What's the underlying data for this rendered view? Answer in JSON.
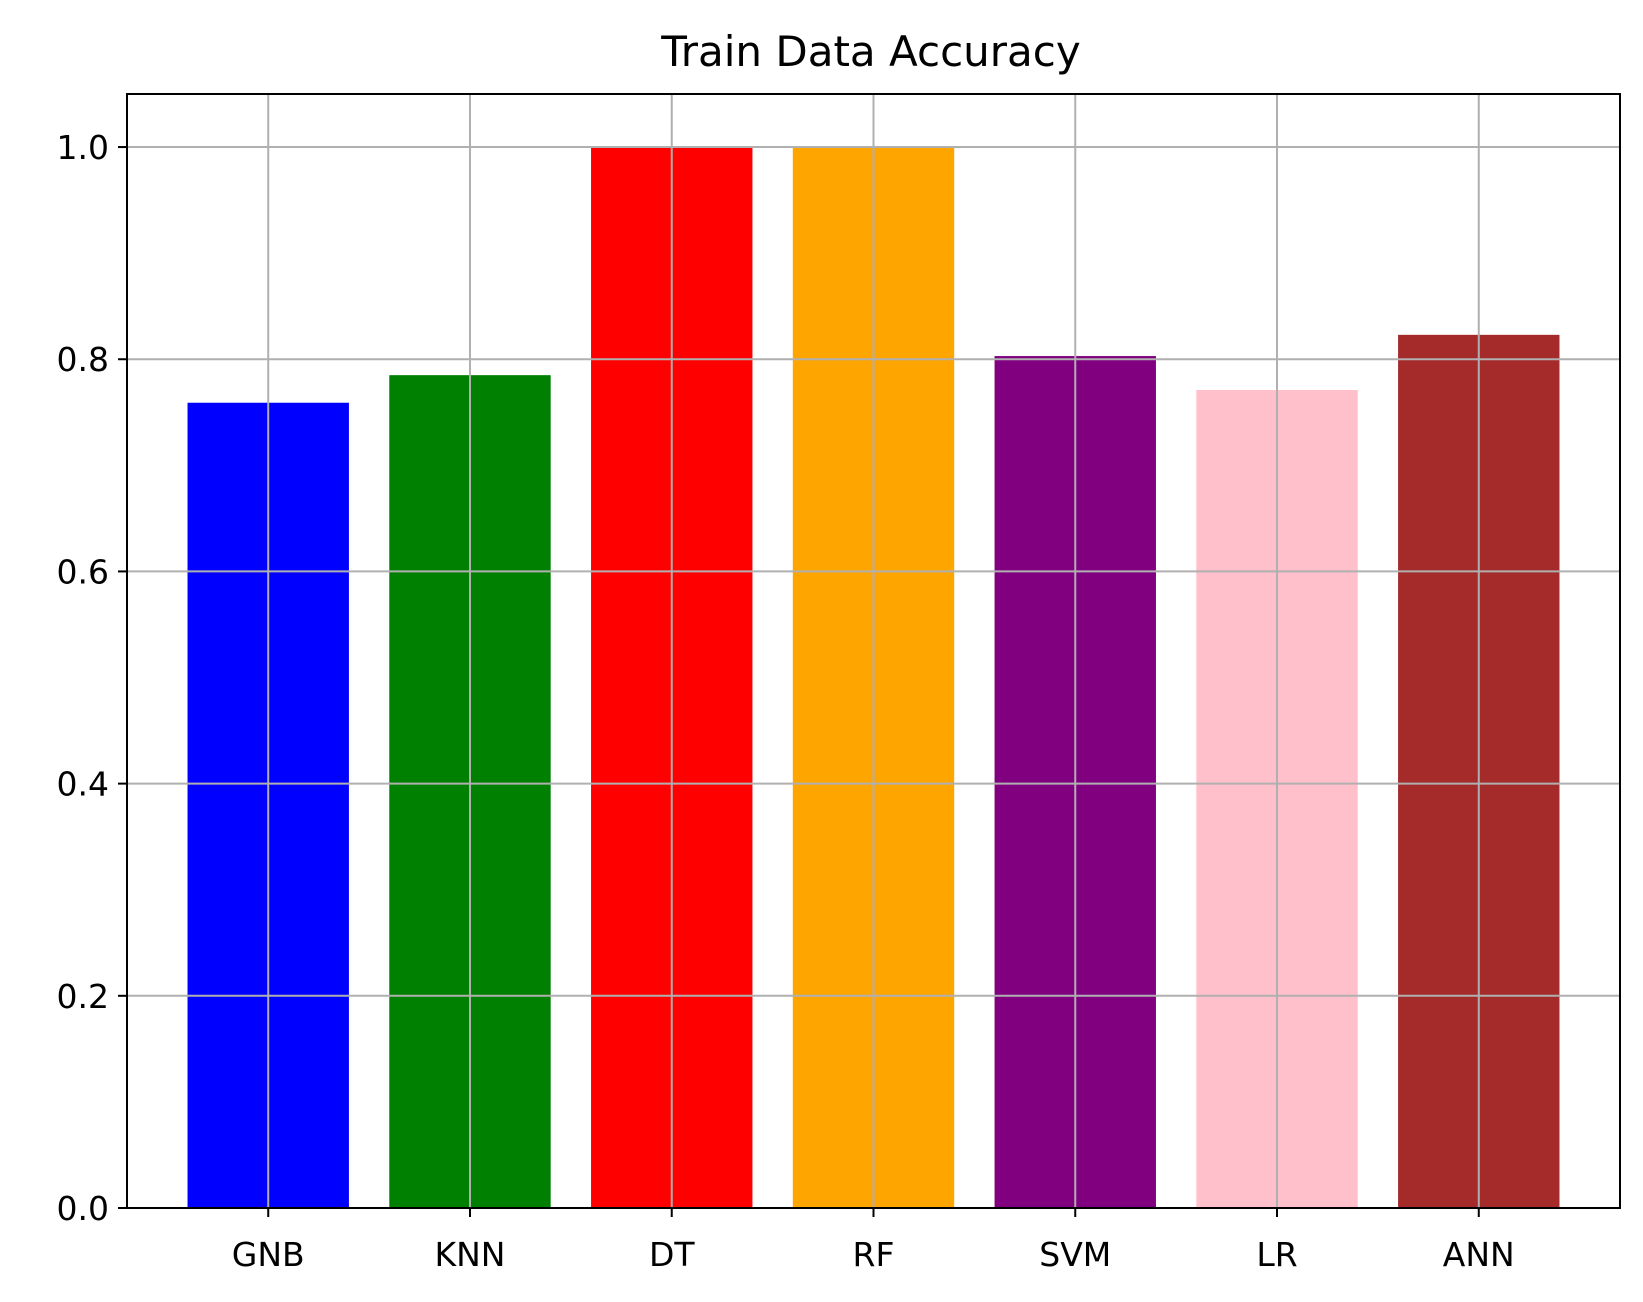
{
  "chart_data": {
    "type": "bar",
    "title": "Train Data Accuracy",
    "xlabel": "",
    "ylabel": "",
    "categories": [
      "GNB",
      "KNN",
      "DT",
      "RF",
      "SVM",
      "LR",
      "ANN"
    ],
    "values": [
      0.759,
      0.785,
      1.0,
      1.0,
      0.803,
      0.771,
      0.823
    ],
    "colors": [
      "#0000ff",
      "#008000",
      "#ff0000",
      "#ffa500",
      "#800080",
      "#ffc0cb",
      "#a52a2a"
    ],
    "ylim": [
      0,
      1.05
    ],
    "yticks": [
      0.0,
      0.2,
      0.4,
      0.6,
      0.8,
      1.0
    ],
    "ytick_labels": [
      "0.0",
      "0.2",
      "0.4",
      "0.6",
      "0.8",
      "1.0"
    ],
    "grid": true,
    "grid_color": "#b0b0b0"
  }
}
